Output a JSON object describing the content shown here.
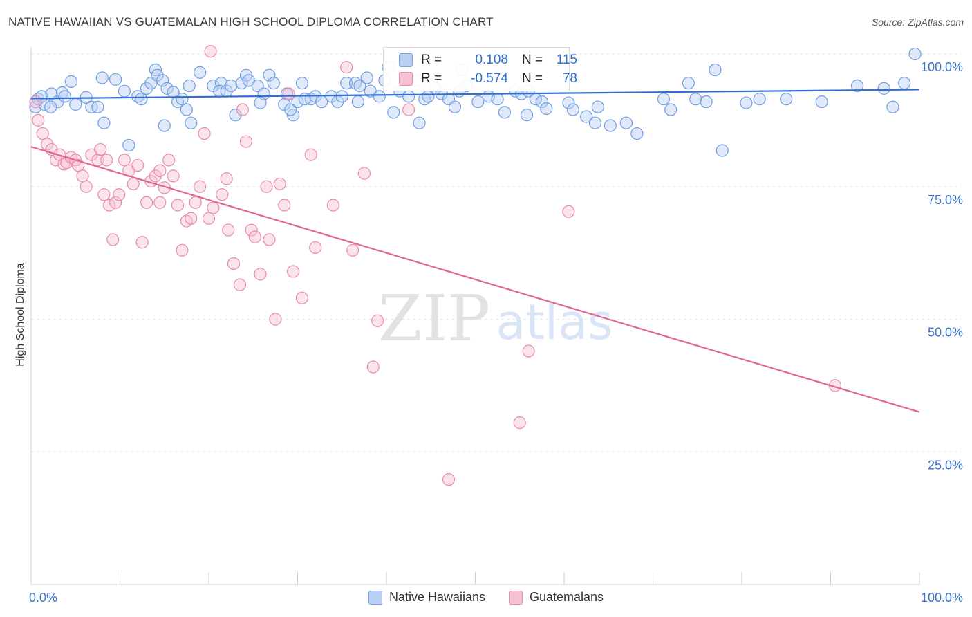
{
  "title": "NATIVE HAWAIIAN VS GUATEMALAN HIGH SCHOOL DIPLOMA CORRELATION CHART",
  "source": "Source: ZipAtlas.com",
  "watermark": {
    "zip": "ZIP",
    "atlas": "atlas"
  },
  "legend": {
    "r_label": "R =",
    "n_label": "N =",
    "rows": [
      {
        "r": "0.108",
        "n": "115"
      },
      {
        "r": "-0.574",
        "n": "78"
      }
    ]
  },
  "colors": {
    "blue_fill": "#b9cff3",
    "blue_stroke": "#6f9de0",
    "blue_line": "#2f6fcf",
    "pink_fill": "#f7c1d3",
    "pink_stroke": "#e98aab",
    "pink_line": "#e06693",
    "grid": "#e3e3e3",
    "tick_text": "#3a72c9"
  },
  "chart_data": {
    "type": "scatter",
    "title": "NATIVE HAWAIIAN VS GUATEMALAN HIGH SCHOOL DIPLOMA CORRELATION CHART",
    "xlabel": "",
    "ylabel": "High School Diploma",
    "xlim": [
      0,
      100
    ],
    "ylim": [
      0,
      100
    ],
    "x_tick_labels": [
      "0.0%",
      "100.0%"
    ],
    "y_ticks": [
      25,
      50,
      75,
      100
    ],
    "y_tick_labels": [
      "25.0%",
      "50.0%",
      "75.0%",
      "100.0%"
    ],
    "grid": true,
    "series": [
      {
        "name": "Native Hawaiians",
        "R": 0.108,
        "N": 115,
        "trend": {
          "x": [
            0,
            100
          ],
          "y": [
            91.6,
            93.3
          ]
        },
        "points": [
          [
            0.5,
            90
          ],
          [
            0.8,
            91.5
          ],
          [
            1.2,
            92
          ],
          [
            1.5,
            90.5
          ],
          [
            2.3,
            92.5
          ],
          [
            3,
            91
          ],
          [
            3.5,
            92.7
          ],
          [
            4.5,
            94.8
          ],
          [
            5,
            90.5
          ],
          [
            6.2,
            91.8
          ],
          [
            6.8,
            90
          ],
          [
            7.5,
            90
          ],
          [
            8,
            95.5
          ],
          [
            8.2,
            87
          ],
          [
            9.5,
            95.2
          ],
          [
            10.5,
            93
          ],
          [
            11,
            82.8
          ],
          [
            12,
            92
          ],
          [
            12.4,
            91.5
          ],
          [
            13,
            93.5
          ],
          [
            13.5,
            94.5
          ],
          [
            14,
            97
          ],
          [
            14.2,
            96
          ],
          [
            14.8,
            95
          ],
          [
            15,
            86.5
          ],
          [
            15.3,
            93.5
          ],
          [
            16.5,
            91
          ],
          [
            17,
            91.5
          ],
          [
            17.5,
            89.5
          ],
          [
            17.8,
            94
          ],
          [
            18,
            87
          ],
          [
            19,
            96.5
          ],
          [
            20.5,
            94
          ],
          [
            21.4,
            94.5
          ],
          [
            21.2,
            93
          ],
          [
            22,
            93
          ],
          [
            22.5,
            94
          ],
          [
            23,
            88.5
          ],
          [
            23.7,
            94.5
          ],
          [
            24.2,
            96
          ],
          [
            24.5,
            95
          ],
          [
            25.5,
            94
          ],
          [
            26.2,
            92.5
          ],
          [
            26.8,
            96
          ],
          [
            27.3,
            94.5
          ],
          [
            28.8,
            92.5
          ],
          [
            29.5,
            88.5
          ],
          [
            30,
            91
          ],
          [
            30.5,
            94.5
          ],
          [
            31.5,
            91.5
          ],
          [
            32,
            92
          ],
          [
            32.7,
            91
          ],
          [
            33.8,
            92
          ],
          [
            34.5,
            91
          ],
          [
            35.5,
            94.5
          ],
          [
            36.5,
            94.5
          ],
          [
            37,
            94
          ],
          [
            37.8,
            95.5
          ],
          [
            38.2,
            93
          ],
          [
            39.2,
            92
          ],
          [
            39.8,
            95
          ],
          [
            40.2,
            97.5
          ],
          [
            40.8,
            89
          ],
          [
            41.5,
            93
          ],
          [
            42.5,
            92
          ],
          [
            43.3,
            95
          ],
          [
            43.7,
            87
          ],
          [
            44.3,
            91.5
          ],
          [
            45.5,
            93.5
          ],
          [
            46.2,
            92.5
          ],
          [
            47,
            91.5
          ],
          [
            47.7,
            90
          ],
          [
            48.5,
            97
          ],
          [
            49,
            94
          ],
          [
            50.3,
            91
          ],
          [
            51.5,
            92
          ],
          [
            52.5,
            91.5
          ],
          [
            53.3,
            89
          ],
          [
            54.5,
            93
          ],
          [
            55.2,
            92.5
          ],
          [
            55.8,
            88.5
          ],
          [
            56,
            93
          ],
          [
            56.8,
            91.5
          ],
          [
            57.5,
            91
          ],
          [
            58,
            89.7
          ],
          [
            60.5,
            90.8
          ],
          [
            61,
            89.5
          ],
          [
            62.5,
            88.2
          ],
          [
            63.5,
            87
          ],
          [
            65.2,
            86.5
          ],
          [
            67,
            87
          ],
          [
            68.2,
            85
          ],
          [
            71.2,
            91.5
          ],
          [
            72,
            89.5
          ],
          [
            74,
            94.5
          ],
          [
            74.8,
            91.5
          ],
          [
            76,
            91
          ],
          [
            77,
            97
          ],
          [
            77.8,
            81.8
          ],
          [
            80.5,
            90.8
          ],
          [
            82,
            91.5
          ],
          [
            85,
            91.5
          ],
          [
            89,
            91
          ],
          [
            93,
            94
          ],
          [
            96,
            93.5
          ],
          [
            97,
            90
          ],
          [
            98.3,
            94.5
          ],
          [
            99.5,
            100
          ],
          [
            2.2,
            90
          ],
          [
            3.8,
            92
          ],
          [
            16,
            92.8
          ],
          [
            28.5,
            90.5
          ],
          [
            29.2,
            89.5
          ],
          [
            44.7,
            92
          ],
          [
            48.2,
            93
          ],
          [
            36.8,
            91
          ],
          [
            63.8,
            90
          ],
          [
            35,
            92
          ],
          [
            30.8,
            91.5
          ],
          [
            25.8,
            90.8
          ]
        ]
      },
      {
        "name": "Guatemalans",
        "R": -0.574,
        "N": 78,
        "trend": {
          "x": [
            0,
            100
          ],
          "y": [
            82.5,
            32.5
          ]
        },
        "points": [
          [
            0.5,
            91
          ],
          [
            0.8,
            87.5
          ],
          [
            1.3,
            85
          ],
          [
            1.8,
            83
          ],
          [
            2.3,
            82
          ],
          [
            2.8,
            80
          ],
          [
            3.2,
            81
          ],
          [
            3.7,
            79.2
          ],
          [
            4,
            79.5
          ],
          [
            4.5,
            80.5
          ],
          [
            5,
            80
          ],
          [
            5.3,
            79
          ],
          [
            5.8,
            77
          ],
          [
            6.2,
            75
          ],
          [
            6.8,
            81
          ],
          [
            7.5,
            80
          ],
          [
            7.8,
            82
          ],
          [
            8.2,
            73.5
          ],
          [
            8.8,
            71.5
          ],
          [
            9.2,
            65
          ],
          [
            9.5,
            72
          ],
          [
            9.9,
            73.5
          ],
          [
            10.5,
            80
          ],
          [
            11,
            78
          ],
          [
            11.5,
            75.5
          ],
          [
            12,
            79
          ],
          [
            12.5,
            64.5
          ],
          [
            13,
            72
          ],
          [
            13.5,
            76
          ],
          [
            14,
            77
          ],
          [
            14.5,
            78
          ],
          [
            15,
            74.8
          ],
          [
            15.5,
            80
          ],
          [
            16,
            77
          ],
          [
            16.5,
            71.5
          ],
          [
            17,
            63
          ],
          [
            17.5,
            68.5
          ],
          [
            18,
            69
          ],
          [
            18.5,
            72
          ],
          [
            19,
            75
          ],
          [
            19.5,
            85
          ],
          [
            20,
            69
          ],
          [
            20.5,
            71
          ],
          [
            21.5,
            73.5
          ],
          [
            22,
            76.5
          ],
          [
            22.2,
            66.8
          ],
          [
            22.8,
            60.5
          ],
          [
            23.5,
            56.5
          ],
          [
            23.8,
            89.5
          ],
          [
            24.2,
            83.5
          ],
          [
            24.8,
            66.8
          ],
          [
            25.2,
            65.5
          ],
          [
            25.8,
            58.5
          ],
          [
            26.5,
            75
          ],
          [
            26.8,
            65
          ],
          [
            27.5,
            50
          ],
          [
            28,
            75.5
          ],
          [
            29,
            92.5
          ],
          [
            29.5,
            59
          ],
          [
            30.5,
            54
          ],
          [
            31.5,
            81
          ],
          [
            32,
            63.5
          ],
          [
            34,
            71.5
          ],
          [
            35.5,
            97.5
          ],
          [
            36.2,
            63
          ],
          [
            37.5,
            77.5
          ],
          [
            38.5,
            41
          ],
          [
            39,
            49.7
          ],
          [
            42.5,
            89.5
          ],
          [
            47,
            19.8
          ],
          [
            55,
            30.5
          ],
          [
            56,
            44
          ],
          [
            60.5,
            70.3
          ],
          [
            90.5,
            37.5
          ],
          [
            14.5,
            72
          ],
          [
            28.5,
            71.5
          ],
          [
            8.5,
            80
          ],
          [
            20.2,
            100.5
          ]
        ]
      }
    ]
  }
}
